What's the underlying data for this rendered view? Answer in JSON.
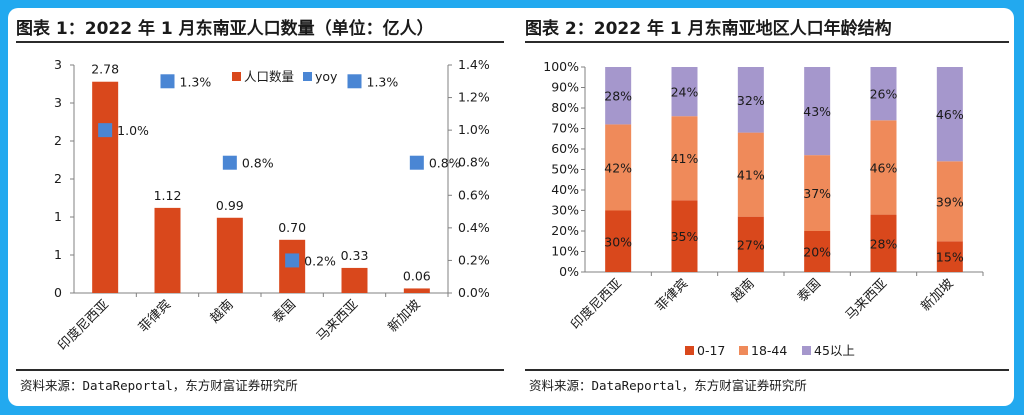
{
  "chart_data": [
    {
      "type": "bar",
      "title": "图表 1：2022 年 1 月东南亚人口数量（单位：亿人）",
      "categories": [
        "印度尼西亚",
        "菲律宾",
        "越南",
        "泰国",
        "马来西亚",
        "新加坡"
      ],
      "series": [
        {
          "name": "人口数量",
          "axis": "left",
          "kind": "bar",
          "color": "#d9481c",
          "values": [
            2.78,
            1.12,
            0.99,
            0.7,
            0.33,
            0.06
          ],
          "labels": [
            "2.78",
            "1.12",
            "0.99",
            "0.70",
            "0.33",
            "0.06"
          ]
        },
        {
          "name": "yoy",
          "axis": "right",
          "kind": "scatter",
          "color": "#4a86d4",
          "values": [
            1.0,
            1.3,
            0.8,
            0.2,
            1.3,
            0.8
          ],
          "labels": [
            "1.0%",
            "1.3%",
            "0.8%",
            "0.2%",
            "1.3%",
            "0.8%"
          ]
        }
      ],
      "ylim": [
        0,
        3
      ],
      "yticks": [
        "0",
        "1",
        "1",
        "2",
        "2",
        "3",
        "3"
      ],
      "y2lim": [
        0,
        1.4
      ],
      "y2ticks": [
        "0.0%",
        "0.2%",
        "0.4%",
        "0.6%",
        "0.8%",
        "1.0%",
        "1.2%",
        "1.4%"
      ],
      "xlabel": "",
      "ylabel": "",
      "legend": "top-center",
      "source": "资料来源：DataReportal，东方财富证券研究所"
    },
    {
      "type": "bar",
      "stacked": true,
      "title": "图表 2：2022 年 1 月东南亚地区人口年龄结构",
      "categories": [
        "印度尼西亚",
        "菲律宾",
        "越南",
        "泰国",
        "马来西亚",
        "新加坡"
      ],
      "series": [
        {
          "name": "0-17",
          "color": "#d9481c",
          "values": [
            30,
            35,
            27,
            20,
            28,
            15
          ]
        },
        {
          "name": "18-44",
          "color": "#ef8a5a",
          "values": [
            42,
            41,
            41,
            37,
            46,
            39
          ]
        },
        {
          "name": "45以上",
          "color": "#a597cc",
          "values": [
            28,
            24,
            32,
            43,
            26,
            46
          ]
        }
      ],
      "ylim": [
        0,
        100
      ],
      "yticks": [
        "0%",
        "10%",
        "20%",
        "30%",
        "40%",
        "50%",
        "60%",
        "70%",
        "80%",
        "90%",
        "100%"
      ],
      "xlabel": "",
      "ylabel": "",
      "legend": "bottom-center",
      "source": "资料来源：DataReportal，东方财富证券研究所"
    }
  ]
}
